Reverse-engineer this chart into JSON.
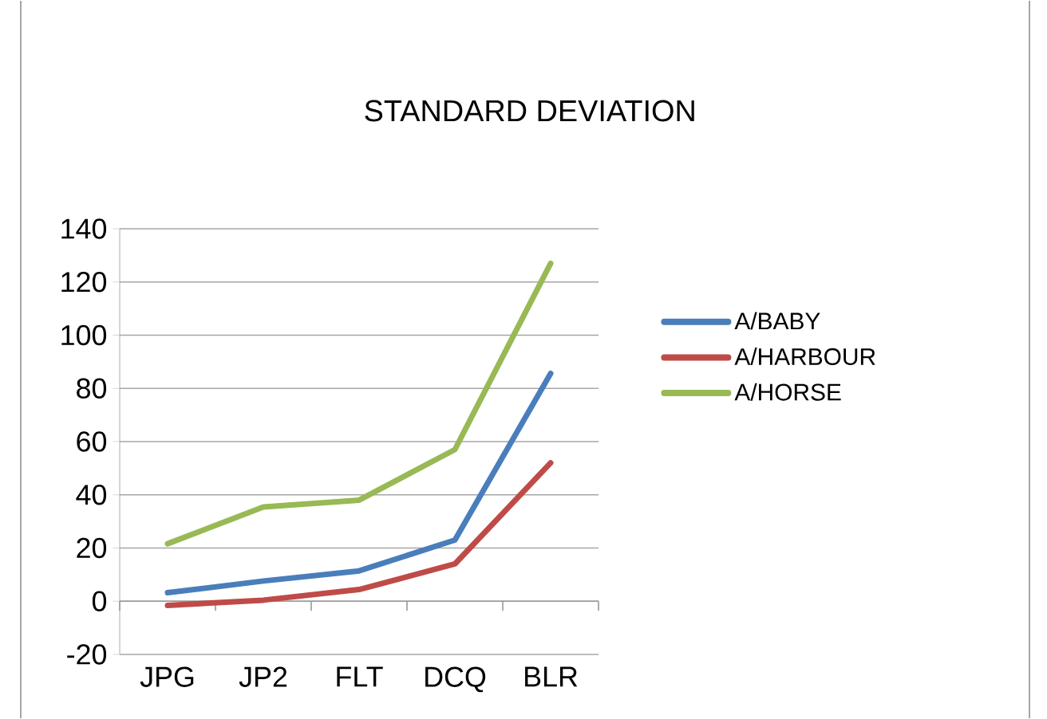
{
  "chart_data": {
    "type": "line",
    "title": "STANDARD DEVIATION",
    "categories": [
      "JPG",
      "JP2",
      "FLT",
      "DCQ",
      "BLR"
    ],
    "series": [
      {
        "name": "A/BABY",
        "color": "#4a7ebb",
        "values": [
          3.2,
          7.6,
          11.4,
          23,
          85.6
        ]
      },
      {
        "name": "A/HARBOUR",
        "color": "#be4b48",
        "values": [
          -1.6,
          0.4,
          4.4,
          14,
          52
        ]
      },
      {
        "name": "A/HORSE",
        "color": "#98b954",
        "values": [
          21.6,
          35.4,
          38,
          57,
          127
        ]
      }
    ],
    "ylim": [
      -20,
      140
    ],
    "yticks": [
      -20,
      0,
      20,
      40,
      60,
      80,
      100,
      120,
      140
    ],
    "grid": "y",
    "legend": "right"
  }
}
